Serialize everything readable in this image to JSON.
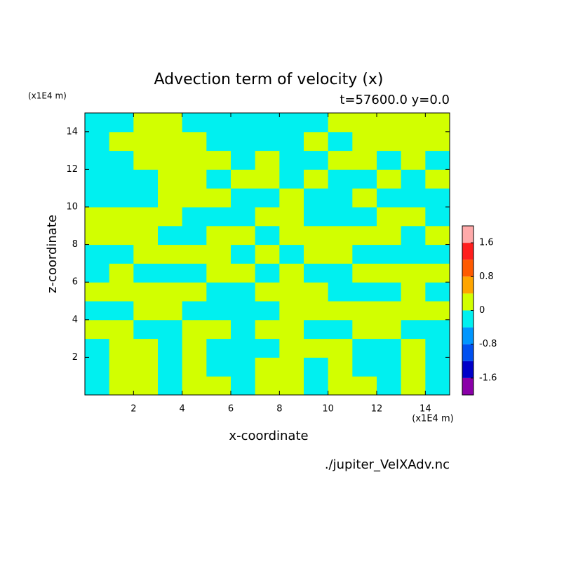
{
  "chart_data": {
    "type": "contour",
    "title": "Advection term of velocity (x)",
    "subtitle": "t=57600.0 y=0.0",
    "xlabel": "x-coordinate",
    "ylabel": "z-coordinate",
    "xunit": "(x1E4 m)",
    "yunit": "(x1E4 m)",
    "footer": "./jupiter_VelXAdv.nc",
    "xlim": [
      0,
      15
    ],
    "ylim": [
      0,
      15
    ],
    "xticks": [
      2,
      4,
      6,
      8,
      10,
      12,
      14
    ],
    "yticks": [
      2,
      4,
      6,
      8,
      10,
      12,
      14
    ],
    "x": [
      0.5,
      1.5,
      2.5,
      3.5,
      4.5,
      5.5,
      6.5,
      7.5,
      8.5,
      9.5,
      10.5,
      11.5,
      12.5,
      13.5,
      14.5
    ],
    "y": [
      0.5,
      1.5,
      2.5,
      3.5,
      4.5,
      5.5,
      6.5,
      7.5,
      8.5,
      9.5,
      10.5,
      11.5,
      12.5,
      13.5,
      14.5
    ],
    "z": [
      [
        -0.2,
        0.2,
        0.2,
        -0.2,
        0.2,
        0.2,
        -0.2,
        0.2,
        0.2,
        -0.2,
        0.2,
        0.2,
        -0.2,
        0.2,
        -0.2
      ],
      [
        -0.2,
        0.2,
        0.2,
        -0.2,
        0.2,
        -0.2,
        -0.2,
        0.2,
        0.2,
        -0.2,
        0.2,
        -0.2,
        -0.2,
        0.2,
        -0.2
      ],
      [
        -0.2,
        0.2,
        0.2,
        -0.2,
        0.2,
        -0.2,
        -0.2,
        -0.2,
        0.2,
        0.2,
        0.2,
        -0.2,
        -0.2,
        0.2,
        -0.2
      ],
      [
        0.2,
        0.2,
        -0.2,
        -0.2,
        0.2,
        0.2,
        -0.2,
        0.2,
        0.2,
        -0.2,
        -0.2,
        0.2,
        0.2,
        -0.2,
        -0.2
      ],
      [
        -0.2,
        -0.2,
        0.2,
        0.2,
        -0.2,
        -0.2,
        -0.2,
        -0.2,
        0.2,
        0.2,
        0.2,
        0.2,
        0.2,
        0.2,
        0.2
      ],
      [
        0.2,
        0.2,
        0.2,
        0.2,
        0.2,
        -0.2,
        -0.2,
        0.2,
        0.2,
        0.2,
        -0.2,
        -0.2,
        -0.2,
        0.2,
        -0.2
      ],
      [
        -0.2,
        0.2,
        -0.2,
        -0.2,
        -0.2,
        0.2,
        0.2,
        -0.2,
        0.2,
        -0.2,
        -0.2,
        0.2,
        0.2,
        0.2,
        0.2
      ],
      [
        -0.2,
        -0.2,
        0.2,
        0.2,
        0.2,
        0.2,
        -0.2,
        0.2,
        -0.2,
        0.2,
        0.2,
        -0.2,
        -0.2,
        -0.2,
        -0.2
      ],
      [
        0.2,
        0.2,
        0.2,
        -0.2,
        -0.2,
        0.2,
        0.2,
        -0.2,
        0.2,
        0.2,
        0.2,
        0.2,
        0.2,
        -0.2,
        0.2
      ],
      [
        0.2,
        0.2,
        0.2,
        0.2,
        -0.2,
        -0.2,
        -0.2,
        0.2,
        0.2,
        -0.2,
        -0.2,
        -0.2,
        0.2,
        0.2,
        -0.2
      ],
      [
        -0.2,
        -0.2,
        -0.2,
        0.2,
        0.2,
        0.2,
        -0.2,
        -0.2,
        0.2,
        -0.2,
        -0.2,
        0.2,
        -0.2,
        -0.2,
        -0.2
      ],
      [
        -0.2,
        -0.2,
        -0.2,
        0.2,
        0.2,
        -0.2,
        0.2,
        0.2,
        -0.2,
        0.2,
        -0.2,
        -0.2,
        0.2,
        -0.2,
        0.2
      ],
      [
        -0.2,
        -0.2,
        0.2,
        0.2,
        0.2,
        0.2,
        -0.2,
        0.2,
        -0.2,
        -0.2,
        0.2,
        0.2,
        -0.2,
        0.2,
        -0.2
      ],
      [
        -0.2,
        0.2,
        0.2,
        0.2,
        0.2,
        -0.2,
        -0.2,
        -0.2,
        -0.2,
        0.2,
        -0.2,
        0.2,
        0.2,
        0.2,
        0.2
      ],
      [
        -0.2,
        -0.2,
        0.2,
        0.2,
        -0.2,
        -0.2,
        -0.2,
        -0.2,
        -0.2,
        -0.2,
        0.2,
        0.2,
        0.2,
        0.2,
        0.2
      ]
    ],
    "levels": [
      -2,
      -1.6,
      -1.2,
      -0.8,
      -0.4,
      0,
      0.4,
      0.8,
      1.2,
      1.6,
      2
    ],
    "colors": [
      "#8a00a8",
      "#0000c8",
      "#0050f0",
      "#0096ff",
      "#00f0f0",
      "#d2ff00",
      "#ffa500",
      "#ff5a00",
      "#ff1e1e",
      "#ffaaaa"
    ],
    "colorbar_ticks": [
      -1.6,
      -0.8,
      0,
      0.8,
      1.6
    ]
  }
}
